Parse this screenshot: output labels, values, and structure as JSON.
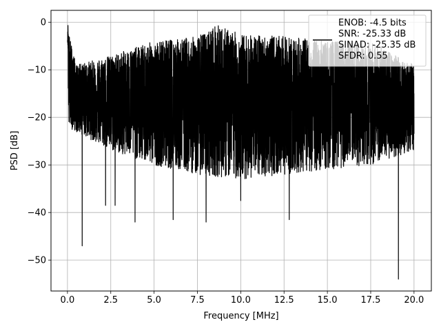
{
  "chart_data": {
    "type": "line",
    "title": "",
    "xlabel": "Frequency [MHz]",
    "ylabel": "PSD [dB]",
    "xlim": [
      -0.95,
      21.0
    ],
    "ylim": [
      -56.5,
      2.5
    ],
    "xticks": [
      0.0,
      2.5,
      5.0,
      7.5,
      10.0,
      12.5,
      15.0,
      17.5,
      20.0
    ],
    "xtick_labels": [
      "0.0",
      "2.5",
      "5.0",
      "7.5",
      "10.0",
      "12.5",
      "15.0",
      "17.5",
      "20.0"
    ],
    "yticks": [
      0,
      -10,
      -20,
      -30,
      -40,
      -50
    ],
    "ytick_labels": [
      "0",
      "−10",
      "−20",
      "−30",
      "−40",
      "−50"
    ],
    "grid": true,
    "legend_position": "top-right",
    "series": [
      {
        "color": "#000000",
        "x_range": [
          0.0,
          20.0
        ],
        "upper_envelope_db": {
          "x": [
            0,
            0.5,
            2.5,
            5,
            7.5,
            8.6,
            10,
            12.5,
            15,
            17.5,
            20
          ],
          "y": [
            -1,
            -9,
            -7,
            -4,
            -3,
            -0.5,
            -2.5,
            -3,
            -4,
            -4,
            -9
          ]
        },
        "lower_envelope_db": {
          "x": [
            0,
            2.5,
            5,
            7.5,
            10,
            12.5,
            15,
            17.5,
            20
          ],
          "y": [
            -22,
            -27,
            -30,
            -32,
            -33,
            -32,
            -31,
            -30,
            -27
          ]
        },
        "notable_minima": [
          {
            "x": 0.85,
            "y": -47
          },
          {
            "x": 2.2,
            "y": -38.5
          },
          {
            "x": 2.75,
            "y": -38.5
          },
          {
            "x": 3.9,
            "y": -42
          },
          {
            "x": 6.1,
            "y": -41.5
          },
          {
            "x": 8.0,
            "y": -42
          },
          {
            "x": 10.0,
            "y": -37.5
          },
          {
            "x": 12.8,
            "y": -41.5
          },
          {
            "x": 19.1,
            "y": -54
          }
        ]
      }
    ],
    "legend_entries": [
      "ENOB: -4.5 bits",
      "SNR: -25.33 dB",
      "SINAD: -25.35 dB",
      "SFDR: 0.55"
    ]
  }
}
